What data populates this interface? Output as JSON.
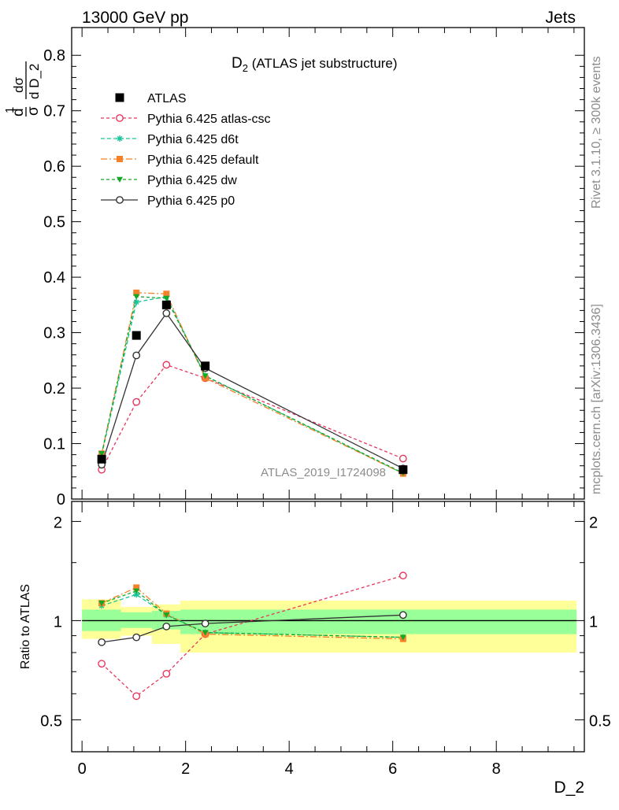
{
  "header": {
    "left": "13000 GeV pp",
    "right": "Jets"
  },
  "side_labels": {
    "rivet": "Rivet 3.1.10, ≥ 300k events",
    "mcplots": "mcplots.cern.ch [arXiv:1306.3436]"
  },
  "watermark": "ATLAS_2019_I1724098",
  "colors": {
    "atlas": "#000000",
    "atlas-csc": "#e8365d",
    "d6t": "#18c59a",
    "default": "#f5822a",
    "dw": "#13a826",
    "p0": "#333333",
    "band_inner": "#99ff99",
    "band_outer": "#ffff99"
  },
  "chart_data": [
    {
      "type": "line",
      "title_main": "D",
      "title_sub": "2",
      "title_rest": " (ATLAS jet substructure)",
      "ylabel": "1/σ dσ/d D_2",
      "ylim": [
        0,
        0.85
      ],
      "yticks": [
        "0",
        "0.1",
        "0.2",
        "0.3",
        "0.4",
        "0.5",
        "0.6",
        "0.7",
        "0.8"
      ],
      "ytick_values": [
        0,
        0.1,
        0.2,
        0.3,
        0.4,
        0.5,
        0.6,
        0.7,
        0.8
      ],
      "xlim": [
        -0.2,
        9.7
      ],
      "log_y": false,
      "legend_position": "top-left",
      "series": [
        {
          "name": "ATLAS",
          "key": "atlas",
          "marker": "square-filled",
          "x": [
            0.38,
            1.05,
            1.63,
            2.38,
            6.2
          ],
          "y": [
            0.072,
            0.295,
            0.35,
            0.24,
            0.053
          ]
        },
        {
          "name": "Pythia 6.425 atlas-csc",
          "key": "atlas-csc",
          "marker": "circle-open",
          "dash": "4,3",
          "x": [
            0.38,
            1.05,
            1.63,
            2.38,
            6.2
          ],
          "y": [
            0.053,
            0.175,
            0.242,
            0.218,
            0.073
          ]
        },
        {
          "name": "Pythia 6.425 d6t",
          "key": "d6t",
          "marker": "star",
          "dash": "5,3",
          "x": [
            0.38,
            1.05,
            1.63,
            2.38,
            6.2
          ],
          "y": [
            0.08,
            0.355,
            0.365,
            0.222,
            0.046
          ]
        },
        {
          "name": "Pythia 6.425 default",
          "key": "default",
          "marker": "square-filled",
          "dash": "8,3,2,3",
          "x": [
            0.38,
            1.05,
            1.63,
            2.38,
            6.2
          ],
          "y": [
            0.082,
            0.372,
            0.37,
            0.218,
            0.046
          ]
        },
        {
          "name": "Pythia 6.425 dw",
          "key": "dw",
          "marker": "triangle-down",
          "dash": "4,3",
          "x": [
            0.38,
            1.05,
            1.63,
            2.38,
            6.2
          ],
          "y": [
            0.082,
            0.365,
            0.362,
            0.222,
            0.047
          ]
        },
        {
          "name": "Pythia 6.425 p0",
          "key": "p0",
          "marker": "circle-open",
          "dash": "",
          "x": [
            0.38,
            1.05,
            1.63,
            2.38,
            6.2
          ],
          "y": [
            0.062,
            0.259,
            0.335,
            0.236,
            0.055
          ]
        }
      ]
    },
    {
      "type": "line",
      "ylabel": "Ratio to ATLAS",
      "xlabel": "D_2",
      "log_y": true,
      "ylim": [
        0.4,
        2.3
      ],
      "yticks": [
        "0.5",
        "1",
        "2"
      ],
      "ytick_values": [
        0.5,
        1,
        2
      ],
      "xticks": [
        "0",
        "2",
        "4",
        "6",
        "8"
      ],
      "xtick_values": [
        0,
        2,
        4,
        6,
        8
      ],
      "xlim": [
        -0.2,
        9.7
      ],
      "bands": [
        {
          "x_from": 0.0,
          "x_to": 0.75,
          "inner": [
            0.93,
            1.08
          ],
          "outer": [
            0.88,
            1.16
          ]
        },
        {
          "x_from": 0.75,
          "x_to": 1.35,
          "inner": [
            0.95,
            1.06
          ],
          "outer": [
            0.9,
            1.1
          ]
        },
        {
          "x_from": 1.35,
          "x_to": 1.9,
          "inner": [
            0.94,
            1.07
          ],
          "outer": [
            0.85,
            1.12
          ]
        },
        {
          "x_from": 1.9,
          "x_to": 2.85,
          "inner": [
            0.91,
            1.08
          ],
          "outer": [
            0.8,
            1.15
          ]
        },
        {
          "x_from": 2.85,
          "x_to": 9.55,
          "inner": [
            0.91,
            1.08
          ],
          "outer": [
            0.8,
            1.15
          ]
        }
      ],
      "series": [
        {
          "name": "Pythia 6.425 atlas-csc",
          "key": "atlas-csc",
          "marker": "circle-open",
          "dash": "4,3",
          "x": [
            0.38,
            1.05,
            1.63,
            2.38,
            6.2
          ],
          "y": [
            0.74,
            0.59,
            0.69,
            0.91,
            1.37
          ]
        },
        {
          "name": "Pythia 6.425 d6t",
          "key": "d6t",
          "marker": "star",
          "dash": "5,3",
          "x": [
            0.38,
            1.05,
            1.63,
            2.38,
            6.2
          ],
          "y": [
            1.11,
            1.2,
            1.04,
            0.92,
            0.89
          ]
        },
        {
          "name": "Pythia 6.425 default",
          "key": "default",
          "marker": "square-filled",
          "dash": "8,3,2,3",
          "x": [
            0.38,
            1.05,
            1.63,
            2.38,
            6.2
          ],
          "y": [
            1.13,
            1.26,
            1.05,
            0.91,
            0.88
          ]
        },
        {
          "name": "Pythia 6.425 dw",
          "key": "dw",
          "marker": "triangle-down",
          "dash": "4,3",
          "x": [
            0.38,
            1.05,
            1.63,
            2.38,
            6.2
          ],
          "y": [
            1.13,
            1.23,
            1.04,
            0.92,
            0.89
          ]
        },
        {
          "name": "Pythia 6.425 p0",
          "key": "p0",
          "marker": "circle-open",
          "dash": "",
          "x": [
            0.38,
            1.05,
            1.63,
            2.38,
            6.2
          ],
          "y": [
            0.86,
            0.89,
            0.96,
            0.98,
            1.04
          ]
        }
      ]
    }
  ]
}
